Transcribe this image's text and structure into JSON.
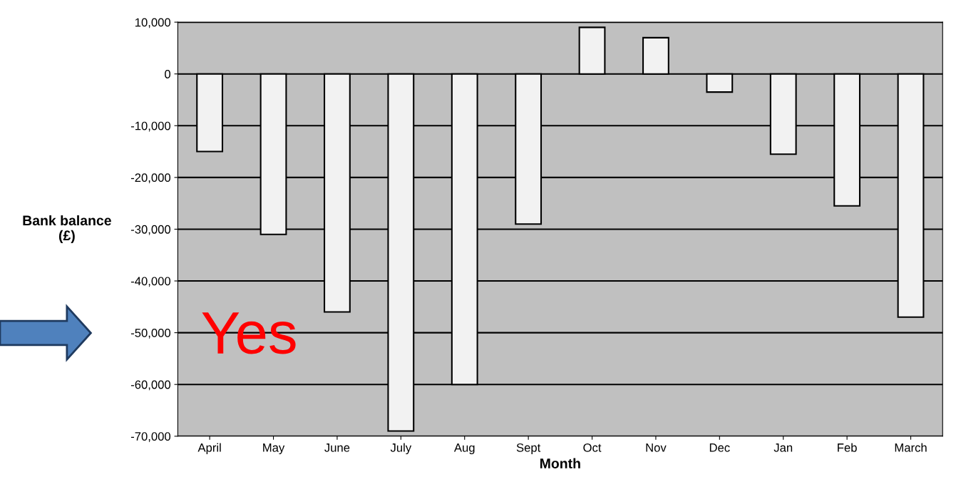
{
  "chart_data": {
    "type": "bar",
    "xlabel": "Month",
    "ylabel": "Bank balance\n(£)",
    "categories": [
      "April",
      "May",
      "June",
      "July",
      "Aug",
      "Sept",
      "Oct",
      "Nov",
      "Dec",
      "Jan",
      "Feb",
      "March"
    ],
    "values": [
      -15000,
      -31000,
      -46000,
      -69000,
      -60000,
      -29000,
      9000,
      7000,
      -3500,
      -15500,
      -25500,
      -47000
    ],
    "color": "#f2f2f2",
    "ylim": [
      -70000,
      10000
    ],
    "yticks": [
      {
        "value": 10000,
        "label": "10,000"
      },
      0,
      {
        "value": -10000,
        "label": "-10,000"
      },
      {
        "value": -20000,
        "label": "-20,000"
      },
      {
        "value": -30000,
        "label": "-30,000"
      },
      {
        "value": -40000,
        "label": "-40,000"
      },
      {
        "value": -50000,
        "label": "-50,000"
      },
      {
        "value": -60000,
        "label": "-60,000"
      },
      {
        "value": -70000,
        "label": "-70,000"
      }
    ],
    "grid": "y",
    "annotations": [
      "Yes"
    ]
  }
}
